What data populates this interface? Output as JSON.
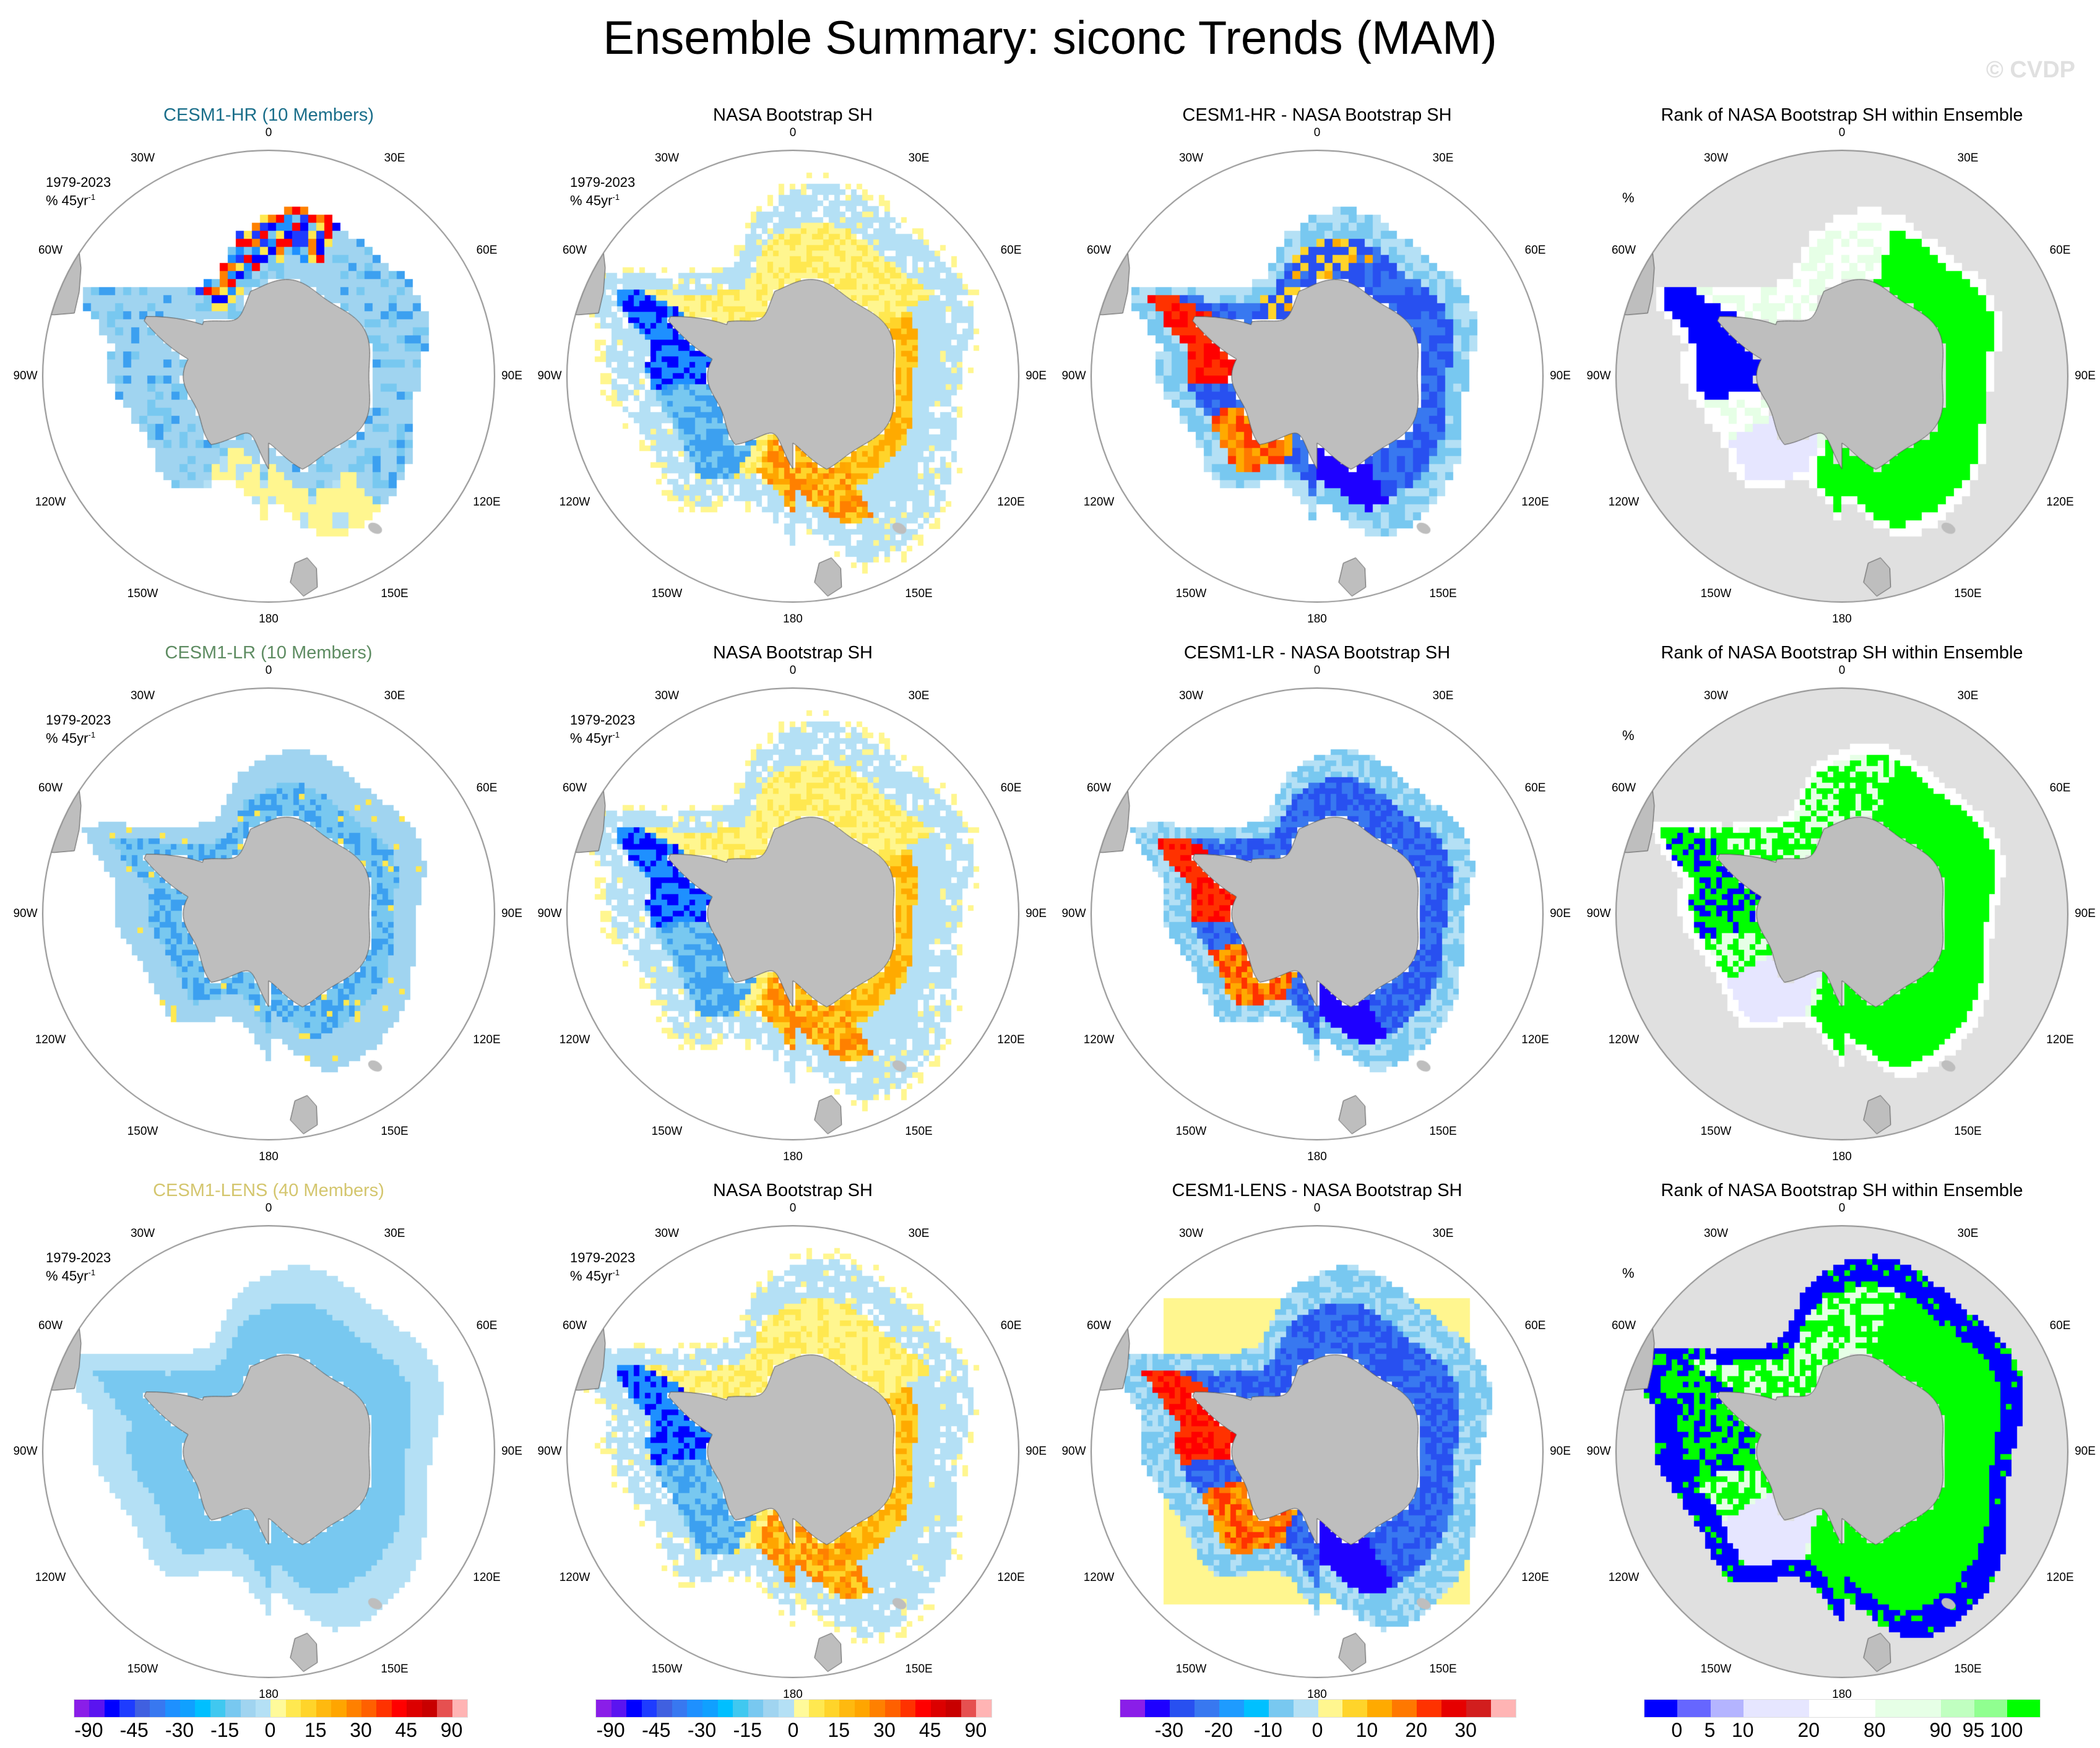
{
  "title": "Ensemble Summary: siconc Trends (MAM)",
  "watermark": "© CVDP",
  "longitude_labels": [
    "0",
    "30E",
    "60E",
    "90E",
    "120E",
    "150E",
    "180",
    "150W",
    "120W",
    "90W",
    "60W",
    "30W"
  ],
  "trend_annotation": {
    "period": "1979-2023",
    "units": "% 45yr",
    "units_exponent": "-1"
  },
  "rank_annotation": "%",
  "rows": [
    {
      "panels": [
        {
          "title": "CESM1-HR (10 Members)",
          "title_color": "#1a6e8a",
          "kind": "model",
          "variant": "hr",
          "annot": "trend"
        },
        {
          "title": "NASA Bootstrap SH",
          "title_color": "#000000",
          "kind": "obs",
          "variant": "hr",
          "annot": "trend"
        },
        {
          "title": "CESM1-HR - NASA Bootstrap SH",
          "title_color": "#000000",
          "kind": "diff",
          "variant": "hr",
          "annot": "none"
        },
        {
          "title": "Rank of NASA Bootstrap SH within Ensemble",
          "title_color": "#000000",
          "kind": "rank",
          "variant": "hr",
          "annot": "rank"
        }
      ]
    },
    {
      "panels": [
        {
          "title": "CESM1-LR (10 Members)",
          "title_color": "#5e8c62",
          "kind": "model",
          "variant": "lr",
          "annot": "trend"
        },
        {
          "title": "NASA Bootstrap SH",
          "title_color": "#000000",
          "kind": "obs",
          "variant": "lr",
          "annot": "trend"
        },
        {
          "title": "CESM1-LR - NASA Bootstrap SH",
          "title_color": "#000000",
          "kind": "diff",
          "variant": "lr",
          "annot": "none"
        },
        {
          "title": "Rank of NASA Bootstrap SH within Ensemble",
          "title_color": "#000000",
          "kind": "rank",
          "variant": "lr",
          "annot": "rank"
        }
      ]
    },
    {
      "panels": [
        {
          "title": "CESM1-LENS (40 Members)",
          "title_color": "#d4c66e",
          "kind": "model",
          "variant": "lens",
          "annot": "trend"
        },
        {
          "title": "NASA Bootstrap SH",
          "title_color": "#000000",
          "kind": "obs",
          "variant": "lens",
          "annot": "trend"
        },
        {
          "title": "CESM1-LENS - NASA Bootstrap SH",
          "title_color": "#000000",
          "kind": "diff",
          "variant": "lens",
          "annot": "none"
        },
        {
          "title": "Rank of NASA Bootstrap SH within Ensemble",
          "title_color": "#000000",
          "kind": "rank",
          "variant": "lens",
          "annot": "rank"
        }
      ]
    }
  ],
  "colorbars": [
    {
      "colors": [
        "#8a1ee8",
        "#5a14f0",
        "#0000ff",
        "#1e3cff",
        "#4060e0",
        "#3878f0",
        "#1e90ff",
        "#10a0ff",
        "#00bfff",
        "#40c8f0",
        "#78c8f0",
        "#a0d4f0",
        "#b4e0f5",
        "#fffa9a",
        "#ffe850",
        "#ffd42a",
        "#ffb90f",
        "#ffa500",
        "#ff8000",
        "#ff6000",
        "#ff3200",
        "#ff0000",
        "#dc0000",
        "#c80000",
        "#e65050",
        "#ffb4b4"
      ],
      "labels": [
        "-90",
        "-45",
        "-30",
        "-15",
        "0",
        "15",
        "30",
        "45",
        "90"
      ],
      "first_boundary": 1,
      "step": 3
    },
    {
      "colors": [
        "#8a1ee8",
        "#5a14f0",
        "#0000ff",
        "#1e3cff",
        "#4060e0",
        "#3878f0",
        "#1e90ff",
        "#10a0ff",
        "#00bfff",
        "#40c8f0",
        "#78c8f0",
        "#a0d4f0",
        "#b4e0f5",
        "#fffa9a",
        "#ffe850",
        "#ffd42a",
        "#ffb90f",
        "#ffa500",
        "#ff8000",
        "#ff6000",
        "#ff3200",
        "#ff0000",
        "#dc0000",
        "#c80000",
        "#e65050",
        "#ffb4b4"
      ],
      "labels": [
        "-90",
        "-45",
        "-30",
        "-15",
        "0",
        "15",
        "30",
        "45",
        "90"
      ],
      "first_boundary": 1,
      "step": 3
    },
    {
      "colors": [
        "#8a1ee8",
        "#1e00ff",
        "#2850f0",
        "#3878f0",
        "#1e9bff",
        "#00c0ff",
        "#78c8f0",
        "#b4e0f5",
        "#fff68f",
        "#ffd42a",
        "#ffaa00",
        "#ff7800",
        "#ff3200",
        "#e60000",
        "#d21e1e",
        "#ffb4b4"
      ],
      "labels": [
        "-30",
        "-20",
        "-10",
        "0",
        "10",
        "20",
        "30"
      ],
      "first_boundary": 2,
      "step": 2
    },
    {
      "colors": [
        "#0000ff",
        "#6666ff",
        "#b4b4ff",
        "#e6e6ff",
        "#e6e6ff",
        "#ffffff",
        "#ffffff",
        "#e6ffe6",
        "#e6ffe6",
        "#c0ffc0",
        "#90ff90",
        "#00ff00"
      ],
      "labels": [
        "0",
        "5",
        "10",
        "20",
        "80",
        "90",
        "95",
        "100"
      ],
      "boundaries": [
        1,
        2,
        3,
        5,
        7,
        9,
        10,
        11
      ]
    }
  ],
  "colors": {
    "land": "#bebebe",
    "rank_background": "#e0e0e0",
    "circle_outline": "#8c8c8c"
  }
}
